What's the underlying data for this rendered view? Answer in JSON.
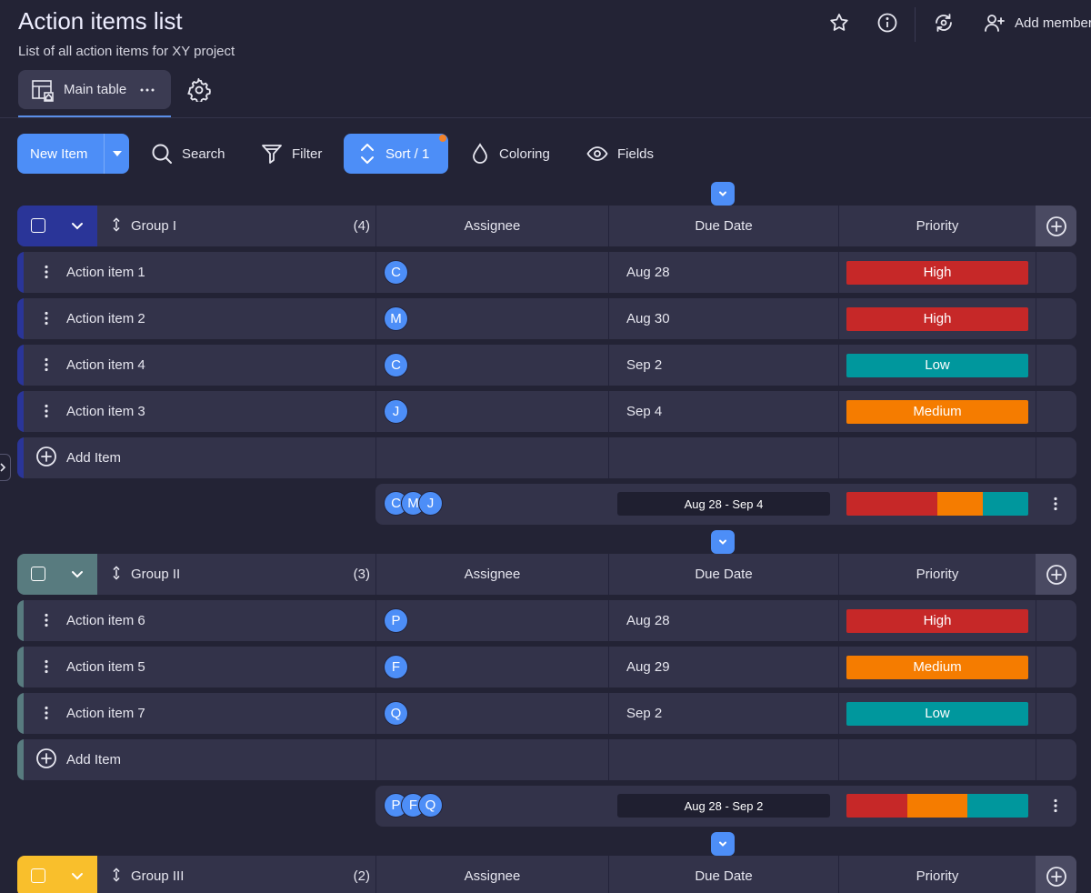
{
  "header": {
    "title": "Action items list",
    "subtitle": "List of all action items for XY project",
    "add_member_label": "Add member"
  },
  "tabs": [
    {
      "label": "Main table"
    }
  ],
  "toolbar": {
    "new_item_label": "New Item",
    "search_label": "Search",
    "filter_label": "Filter",
    "sort_label": "Sort / 1",
    "coloring_label": "Coloring",
    "fields_label": "Fields"
  },
  "columns": {
    "assignee": "Assignee",
    "due_date": "Due Date",
    "priority": "Priority"
  },
  "add_item_label": "Add Item",
  "priority_colors": {
    "High": "#c62828",
    "Medium": "#f57c00",
    "Low": "#00979d"
  },
  "groups": [
    {
      "name": "Group I",
      "count": "(4)",
      "color": "#2a3598",
      "items": [
        {
          "name": "Action item 1",
          "assignee": "C",
          "due": "Aug 28",
          "priority": "High"
        },
        {
          "name": "Action item 2",
          "assignee": "M",
          "due": "Aug 30",
          "priority": "High"
        },
        {
          "name": "Action item 4",
          "assignee": "C",
          "due": "Sep 2",
          "priority": "Low"
        },
        {
          "name": "Action item 3",
          "assignee": "J",
          "due": "Sep 4",
          "priority": "Medium"
        }
      ],
      "summary": {
        "assignees": [
          "C",
          "M",
          "J"
        ],
        "date_range": "Aug 28 - Sep 4",
        "priority_share": {
          "High": 0.5,
          "Medium": 0.25,
          "Low": 0.25
        }
      }
    },
    {
      "name": "Group II",
      "count": "(3)",
      "color": "#587b7f",
      "items": [
        {
          "name": "Action item 6",
          "assignee": "P",
          "due": "Aug 28",
          "priority": "High"
        },
        {
          "name": "Action item 5",
          "assignee": "F",
          "due": "Aug 29",
          "priority": "Medium"
        },
        {
          "name": "Action item 7",
          "assignee": "Q",
          "due": "Sep 2",
          "priority": "Low"
        }
      ],
      "summary": {
        "assignees": [
          "P",
          "F",
          "Q"
        ],
        "date_range": "Aug 28 - Sep 2",
        "priority_share": {
          "High": 0.333,
          "Medium": 0.333,
          "Low": 0.334
        }
      }
    },
    {
      "name": "Group III",
      "count": "(2)",
      "color": "#f9bf2c",
      "items": []
    }
  ]
}
